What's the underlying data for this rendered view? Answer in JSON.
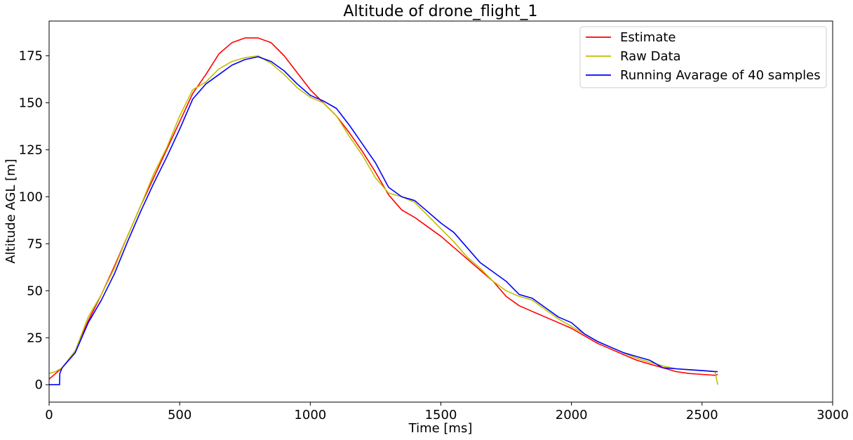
{
  "chart_data": {
    "type": "line",
    "title": "Altitude of drone_flight_1",
    "xlabel": "Time [ms]",
    "ylabel": "Altitude AGL [m]",
    "xlim": [
      0,
      3000
    ],
    "ylim": [
      -9.25,
      193.5
    ],
    "xticks": [
      0,
      500,
      1000,
      1500,
      2000,
      2500,
      3000
    ],
    "yticks": [
      0,
      25,
      50,
      75,
      100,
      125,
      150,
      175
    ],
    "grid": false,
    "legend_position": "top-right",
    "series": [
      {
        "name": "Estimate",
        "color": "#ff0000",
        "x": [
          0,
          25,
          50,
          100,
          150,
          200,
          250,
          300,
          350,
          400,
          450,
          500,
          550,
          600,
          650,
          700,
          750,
          800,
          850,
          900,
          950,
          1000,
          1050,
          1100,
          1150,
          1200,
          1250,
          1300,
          1350,
          1400,
          1450,
          1500,
          1550,
          1600,
          1650,
          1700,
          1750,
          1800,
          1850,
          1900,
          1950,
          2000,
          2050,
          2100,
          2150,
          2200,
          2250,
          2300,
          2350,
          2400,
          2450,
          2500,
          2550,
          2560
        ],
        "y": [
          3,
          6,
          9,
          18,
          34,
          48,
          63,
          79,
          95,
          110,
          125,
          140,
          155,
          165,
          176,
          182,
          184.5,
          184.5,
          182,
          175,
          166,
          157,
          150,
          143,
          134,
          124,
          113,
          101,
          93,
          89,
          84,
          79,
          73,
          67,
          61,
          55,
          47,
          42,
          39,
          36,
          33,
          30,
          26,
          22,
          19,
          16,
          13,
          11,
          9,
          7,
          6,
          5.5,
          5,
          5.5
        ]
      },
      {
        "name": "Raw Data",
        "color": "#bfbf00",
        "x": [
          0,
          25,
          50,
          100,
          150,
          200,
          250,
          300,
          350,
          400,
          450,
          500,
          550,
          600,
          650,
          700,
          750,
          800,
          850,
          900,
          950,
          1000,
          1050,
          1100,
          1150,
          1200,
          1250,
          1300,
          1350,
          1400,
          1450,
          1500,
          1550,
          1600,
          1650,
          1700,
          1750,
          1800,
          1850,
          1900,
          1950,
          2000,
          2050,
          2100,
          2150,
          2200,
          2250,
          2300,
          2350,
          2400,
          2450,
          2500,
          2550,
          2560
        ],
        "y": [
          6,
          7,
          9,
          18,
          36,
          48,
          62,
          79,
          95,
          112,
          126,
          143,
          157,
          161,
          168,
          172,
          174,
          175,
          171,
          165,
          158,
          153,
          150,
          143,
          132,
          122,
          110,
          102,
          100,
          97,
          90,
          83,
          76,
          68,
          62,
          55,
          50,
          47,
          45,
          40,
          35,
          31,
          27,
          23,
          20,
          17,
          14,
          12,
          10,
          8.5,
          8,
          7.5,
          7,
          0
        ]
      },
      {
        "name": "Running Avarage of 40 samples",
        "color": "#0000ff",
        "x": [
          0,
          40,
          41,
          50,
          100,
          150,
          200,
          250,
          300,
          350,
          400,
          450,
          500,
          550,
          600,
          650,
          700,
          750,
          800,
          850,
          900,
          950,
          1000,
          1050,
          1100,
          1150,
          1200,
          1250,
          1300,
          1350,
          1400,
          1450,
          1500,
          1550,
          1600,
          1650,
          1700,
          1750,
          1800,
          1850,
          1900,
          1950,
          2000,
          2050,
          2100,
          2150,
          2200,
          2250,
          2300,
          2350,
          2400,
          2450,
          2500,
          2550,
          2560
        ],
        "y": [
          0,
          0,
          6,
          9,
          17,
          33,
          45,
          59,
          76,
          92,
          107,
          121,
          136,
          152,
          160,
          165,
          170,
          173,
          174.5,
          172,
          167,
          160,
          154,
          151,
          147,
          138,
          128,
          118,
          105,
          100,
          98,
          92,
          86,
          81,
          73,
          65,
          60,
          55,
          48,
          46,
          41,
          36,
          33,
          27,
          23,
          20,
          17,
          15,
          13,
          9,
          8.5,
          8,
          7.5,
          7,
          7
        ]
      }
    ]
  }
}
